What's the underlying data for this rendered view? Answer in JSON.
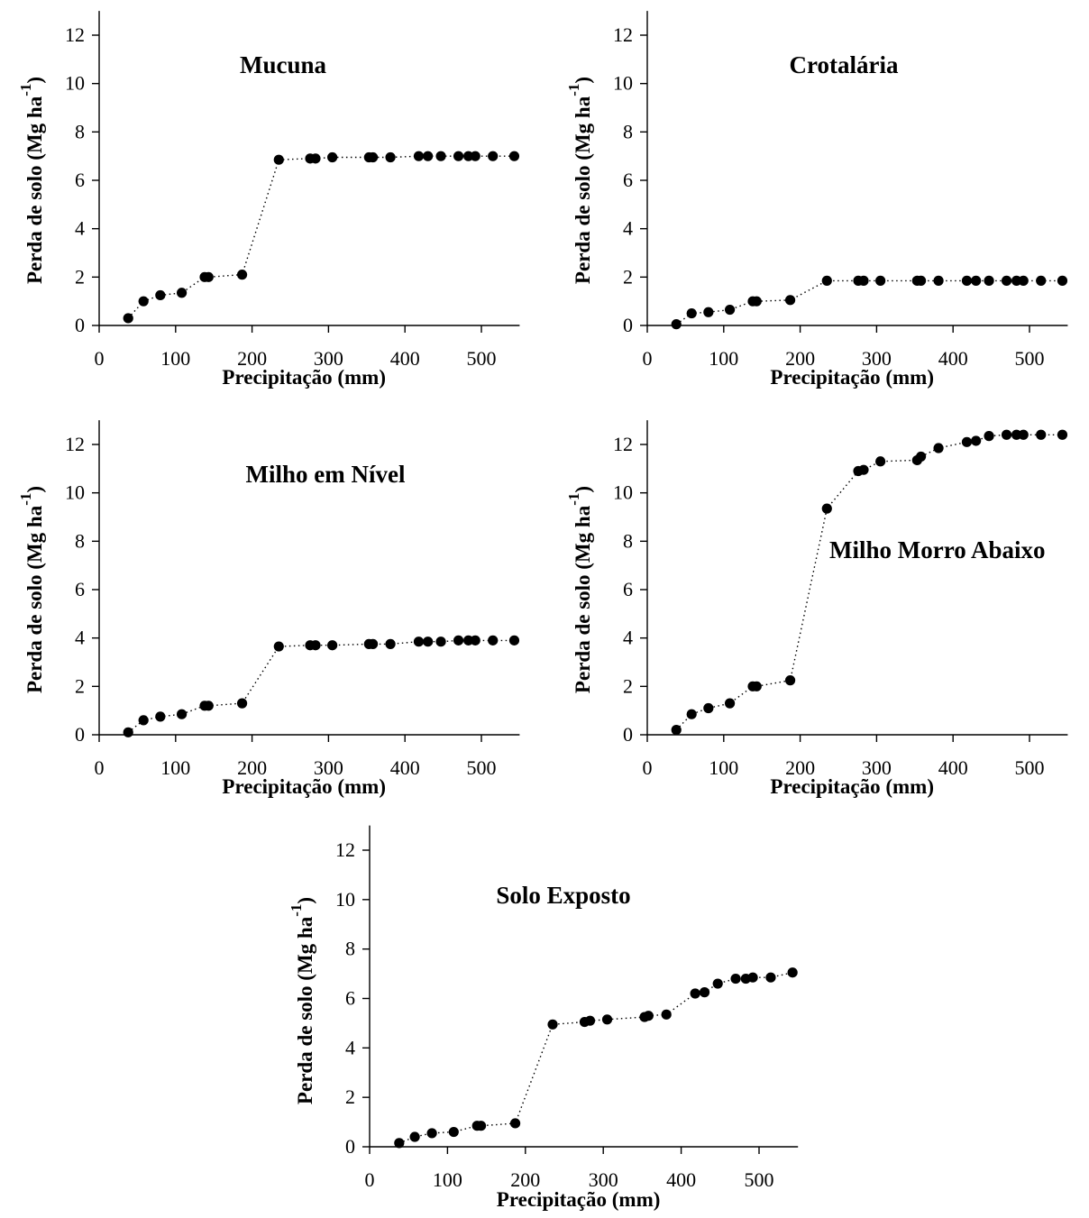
{
  "figure": {
    "ylabel_main": "Perda de solo (Mg ha",
    "ylabel_exp": "-1",
    "ylabel_close": ")",
    "xlabel": "Precipitação (mm)"
  },
  "chart_data": [
    {
      "type": "scatter",
      "title": "Mucuna",
      "xlabel": "Precipitação (mm)",
      "ylabel": "Perda de solo (Mg ha-1)",
      "xlim": [
        0,
        550
      ],
      "ylim": [
        0,
        13
      ],
      "xticks": [
        0,
        100,
        200,
        300,
        400,
        500
      ],
      "yticks": [
        0,
        2,
        4,
        6,
        8,
        10,
        12
      ],
      "connect": "dotted",
      "x": [
        38,
        58,
        80,
        108,
        138,
        143,
        187,
        235,
        276,
        283,
        305,
        353,
        358,
        381,
        418,
        430,
        447,
        470,
        483,
        492,
        515,
        543
      ],
      "y": [
        0.3,
        1.0,
        1.25,
        1.35,
        2.0,
        2.0,
        2.1,
        6.85,
        6.9,
        6.9,
        6.95,
        6.95,
        6.95,
        6.95,
        7.0,
        7.0,
        7.0,
        7.0,
        7.0,
        7.0,
        7.0,
        7.0
      ]
    },
    {
      "type": "scatter",
      "title": "Crotalária",
      "xlabel": "Precipitação (mm)",
      "ylabel": "Perda de solo (Mg ha-1)",
      "xlim": [
        0,
        550
      ],
      "ylim": [
        0,
        13
      ],
      "xticks": [
        0,
        100,
        200,
        300,
        400,
        500
      ],
      "yticks": [
        0,
        2,
        4,
        6,
        8,
        10,
        12
      ],
      "connect": "dotted",
      "x": [
        38,
        58,
        80,
        108,
        138,
        143,
        187,
        235,
        276,
        283,
        305,
        353,
        358,
        381,
        418,
        430,
        447,
        470,
        483,
        492,
        515,
        543
      ],
      "y": [
        0.05,
        0.5,
        0.55,
        0.65,
        1.0,
        1.0,
        1.05,
        1.85,
        1.85,
        1.85,
        1.85,
        1.85,
        1.85,
        1.85,
        1.85,
        1.85,
        1.85,
        1.85,
        1.85,
        1.85,
        1.85,
        1.85
      ]
    },
    {
      "type": "scatter",
      "title": "Milho em Nível",
      "xlabel": "Precipitação (mm)",
      "ylabel": "Perda de solo (Mg ha-1)",
      "xlim": [
        0,
        550
      ],
      "ylim": [
        0,
        13
      ],
      "xticks": [
        0,
        100,
        200,
        300,
        400,
        500
      ],
      "yticks": [
        0,
        2,
        4,
        6,
        8,
        10,
        12
      ],
      "connect": "dotted",
      "x": [
        38,
        58,
        80,
        108,
        138,
        143,
        187,
        235,
        276,
        283,
        305,
        353,
        358,
        381,
        418,
        430,
        447,
        470,
        483,
        492,
        515,
        543
      ],
      "y": [
        0.1,
        0.6,
        0.75,
        0.85,
        1.2,
        1.2,
        1.3,
        3.65,
        3.7,
        3.7,
        3.7,
        3.75,
        3.75,
        3.75,
        3.85,
        3.85,
        3.85,
        3.9,
        3.9,
        3.9,
        3.9,
        3.9
      ]
    },
    {
      "type": "scatter",
      "title": "Milho Morro Abaixo",
      "xlabel": "Precipitação (mm)",
      "ylabel": "Perda de solo (Mg ha-1)",
      "xlim": [
        0,
        550
      ],
      "ylim": [
        0,
        13
      ],
      "xticks": [
        0,
        100,
        200,
        300,
        400,
        500
      ],
      "yticks": [
        0,
        2,
        4,
        6,
        8,
        10,
        12
      ],
      "connect": "dotted",
      "x": [
        38,
        58,
        80,
        108,
        138,
        143,
        187,
        235,
        276,
        283,
        305,
        353,
        358,
        381,
        418,
        430,
        447,
        470,
        483,
        492,
        515,
        543
      ],
      "y": [
        0.2,
        0.85,
        1.1,
        1.3,
        2.0,
        2.0,
        2.25,
        9.35,
        10.9,
        10.95,
        11.3,
        11.35,
        11.5,
        11.85,
        12.1,
        12.15,
        12.35,
        12.4,
        12.4,
        12.4,
        12.4,
        12.4
      ]
    },
    {
      "type": "scatter",
      "title": "Solo Exposto",
      "xlabel": "Precipitação (mm)",
      "ylabel": "Perda de solo (Mg ha-1)",
      "xlim": [
        0,
        550
      ],
      "ylim": [
        0,
        13
      ],
      "xticks": [
        0,
        100,
        200,
        300,
        400,
        500
      ],
      "yticks": [
        0,
        2,
        4,
        6,
        8,
        10,
        12
      ],
      "connect": "dotted",
      "x": [
        38,
        58,
        80,
        108,
        138,
        143,
        187,
        235,
        276,
        283,
        305,
        353,
        358,
        381,
        418,
        430,
        447,
        470,
        483,
        492,
        515,
        543
      ],
      "y": [
        0.15,
        0.4,
        0.55,
        0.6,
        0.85,
        0.85,
        0.95,
        4.95,
        5.05,
        5.1,
        5.15,
        5.25,
        5.3,
        5.35,
        6.2,
        6.25,
        6.6,
        6.8,
        6.8,
        6.85,
        6.85,
        7.05
      ]
    }
  ]
}
